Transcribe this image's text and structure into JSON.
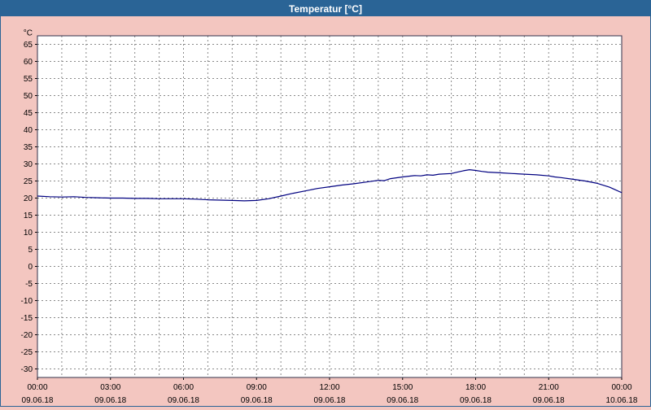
{
  "window": {
    "title": "Temperatur [°C]"
  },
  "colors": {
    "titlebar": "#2a6496",
    "background": "#f3c6c0",
    "plot_bg": "#ffffff",
    "grid": "#8a8a8a",
    "border": "#30304a",
    "text": "#000000",
    "line": "#000080"
  },
  "chart_data": {
    "type": "line",
    "title": "Temperatur [°C]",
    "ylabel_unit": "°C",
    "xlim_hours": [
      0,
      24
    ],
    "ylim": [
      -32.5,
      67.5
    ],
    "y_ticks": [
      65,
      60,
      55,
      50,
      45,
      40,
      35,
      30,
      25,
      20,
      15,
      10,
      5,
      0,
      -5,
      -10,
      -15,
      -20,
      -25,
      -30
    ],
    "x_ticks": [
      {
        "hour": 0,
        "time": "00:00",
        "date": "09.06.18"
      },
      {
        "hour": 3,
        "time": "03:00",
        "date": "09.06.18"
      },
      {
        "hour": 6,
        "time": "06:00",
        "date": "09.06.18"
      },
      {
        "hour": 9,
        "time": "09:00",
        "date": "09.06.18"
      },
      {
        "hour": 12,
        "time": "12:00",
        "date": "09.06.18"
      },
      {
        "hour": 15,
        "time": "15:00",
        "date": "09.06.18"
      },
      {
        "hour": 18,
        "time": "18:00",
        "date": "09.06.18"
      },
      {
        "hour": 21,
        "time": "21:00",
        "date": "09.06.18"
      },
      {
        "hour": 24,
        "time": "00:00",
        "date": "10.06.18"
      }
    ],
    "grid": {
      "vertical_every_hours": 1,
      "horizontal_every_deg": 5,
      "style": "dashed"
    },
    "legend": "none",
    "series": [
      {
        "name": "Temperatur",
        "color": "#000080",
        "points": [
          [
            0,
            20.6
          ],
          [
            0.5,
            20.4
          ],
          [
            1,
            20.3
          ],
          [
            1.5,
            20.4
          ],
          [
            2,
            20.2
          ],
          [
            2.5,
            20.1
          ],
          [
            3,
            20.0
          ],
          [
            3.5,
            20.0
          ],
          [
            4,
            19.9
          ],
          [
            4.5,
            19.9
          ],
          [
            5,
            19.8
          ],
          [
            5.5,
            19.8
          ],
          [
            6,
            19.8
          ],
          [
            6.5,
            19.7
          ],
          [
            7,
            19.5
          ],
          [
            7.5,
            19.4
          ],
          [
            8,
            19.3
          ],
          [
            8.5,
            19.2
          ],
          [
            9,
            19.3
          ],
          [
            9.5,
            19.8
          ],
          [
            10,
            20.6
          ],
          [
            10.5,
            21.4
          ],
          [
            11,
            22.1
          ],
          [
            11.5,
            22.8
          ],
          [
            12,
            23.3
          ],
          [
            12.5,
            23.8
          ],
          [
            13,
            24.2
          ],
          [
            13.5,
            24.7
          ],
          [
            14,
            25.2
          ],
          [
            14.25,
            25.1
          ],
          [
            14.5,
            25.7
          ],
          [
            15,
            26.2
          ],
          [
            15.5,
            26.6
          ],
          [
            15.75,
            26.5
          ],
          [
            16,
            26.8
          ],
          [
            16.25,
            26.7
          ],
          [
            16.5,
            27.0
          ],
          [
            17,
            27.2
          ],
          [
            17.25,
            27.6
          ],
          [
            17.5,
            28.0
          ],
          [
            17.75,
            28.3
          ],
          [
            18,
            28.1
          ],
          [
            18.25,
            27.8
          ],
          [
            18.5,
            27.6
          ],
          [
            19,
            27.4
          ],
          [
            19.5,
            27.2
          ],
          [
            20,
            27.0
          ],
          [
            20.5,
            26.8
          ],
          [
            21,
            26.5
          ],
          [
            21.25,
            26.2
          ],
          [
            21.5,
            26.0
          ],
          [
            22,
            25.5
          ],
          [
            22.5,
            25.0
          ],
          [
            23,
            24.3
          ],
          [
            23.5,
            23.2
          ],
          [
            23.75,
            22.4
          ],
          [
            24,
            21.6
          ]
        ]
      }
    ]
  }
}
